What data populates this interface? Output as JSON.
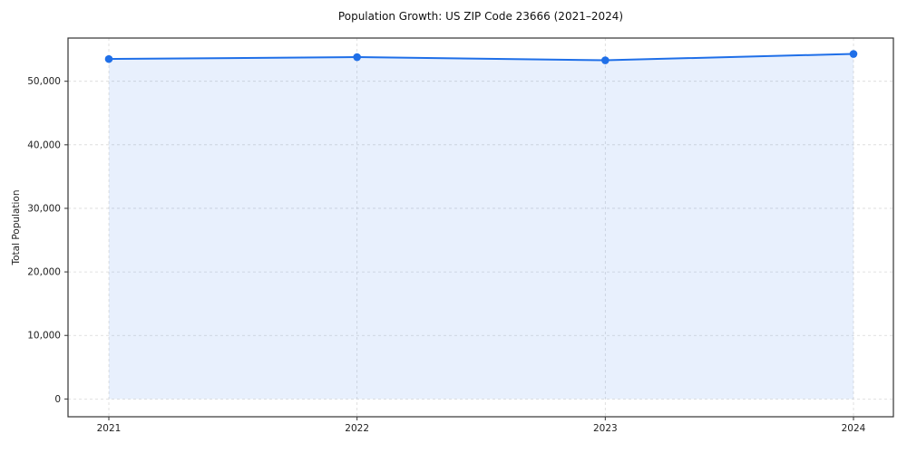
{
  "chart_data": {
    "type": "line",
    "title": "Population Growth: US ZIP Code 23666 (2021–2024)",
    "xlabel": "",
    "ylabel": "Total Population",
    "x": [
      2021,
      2022,
      2023,
      2024
    ],
    "series": [
      {
        "name": "Total Population",
        "values": [
          53500,
          53800,
          53300,
          54300
        ]
      }
    ],
    "yticks": [
      0,
      10000,
      20000,
      30000,
      40000,
      50000
    ],
    "ylim": [
      -2800,
      56800
    ],
    "grid": "dashed",
    "legend": "none",
    "area_fill": true,
    "colors": {
      "line": "#1f6fe8",
      "fill": "rgba(31,111,232,0.10)",
      "grid": "#cfcfcf",
      "axis": "#333333",
      "tick_text": "#222222"
    }
  }
}
